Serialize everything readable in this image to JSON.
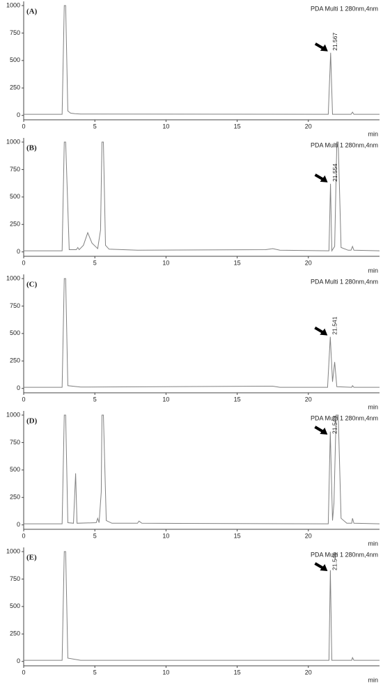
{
  "chart_data": [
    {
      "type": "line",
      "title": "(A)",
      "subtitle": "PDA Multi 1 280nm,4nm",
      "x_label": "min",
      "xlim": [
        0,
        25
      ],
      "xticks": [
        0,
        5,
        10,
        15,
        20
      ],
      "ylim": [
        -40,
        1000
      ],
      "yticks": [
        0,
        250,
        500,
        750,
        1000
      ],
      "series": [
        {
          "color": "#808080",
          "x": [
            0,
            2.7,
            2.85,
            2.95,
            3.1,
            3.3,
            3.6,
            4,
            21.4,
            21.567,
            21.7,
            23.0,
            23.1,
            23.2,
            25
          ],
          "values": [
            10,
            10,
            1000,
            1000,
            40,
            20,
            15,
            12,
            10,
            570,
            10,
            10,
            30,
            10,
            10
          ]
        }
      ],
      "annotations": [
        {
          "text": "21.567",
          "x": 21.567
        }
      ]
    },
    {
      "type": "line",
      "title": "(B)",
      "subtitle": "PDA Multi 1 280nm,4nm",
      "x_label": "min",
      "xlim": [
        0,
        25
      ],
      "xticks": [
        0,
        5,
        10,
        15,
        20
      ],
      "ylim": [
        -40,
        1000
      ],
      "yticks": [
        0,
        250,
        500,
        750,
        1000
      ],
      "series": [
        {
          "color": "#808080",
          "x": [
            0,
            2.7,
            2.85,
            2.95,
            3.2,
            3.7,
            3.8,
            3.9,
            4.2,
            4.5,
            4.8,
            5.2,
            5.4,
            5.5,
            5.6,
            5.75,
            6,
            8,
            17,
            17.5,
            18,
            21.45,
            21.554,
            21.65,
            21.85,
            22.0,
            22.1,
            22.3,
            22.8,
            23.0,
            23.1,
            23.2,
            25
          ],
          "values": [
            10,
            10,
            1000,
            1000,
            20,
            20,
            40,
            20,
            60,
            175,
            80,
            30,
            200,
            1000,
            1000,
            60,
            25,
            15,
            20,
            30,
            15,
            10,
            620,
            10,
            50,
            1000,
            1000,
            40,
            15,
            15,
            50,
            15,
            10
          ]
        }
      ],
      "annotations": [
        {
          "text": "21.554",
          "x": 21.554
        }
      ]
    },
    {
      "type": "line",
      "title": "(C)",
      "subtitle": "PDA Multi 1 280nm,4nm",
      "x_label": "min",
      "xlim": [
        0,
        25
      ],
      "xticks": [
        0,
        5,
        10,
        15,
        20
      ],
      "ylim": [
        -40,
        1000
      ],
      "yticks": [
        0,
        250,
        500,
        750,
        1000
      ],
      "series": [
        {
          "color": "#808080",
          "x": [
            0,
            2.7,
            2.85,
            2.95,
            3.1,
            4,
            17.5,
            18,
            21.35,
            21.541,
            21.7,
            21.85,
            22,
            23.05,
            23.1,
            23.2,
            25
          ],
          "values": [
            10,
            10,
            1000,
            1000,
            25,
            12,
            20,
            10,
            10,
            470,
            60,
            240,
            15,
            10,
            25,
            10,
            10
          ]
        }
      ],
      "annotations": [
        {
          "text": "21.541",
          "x": 21.541
        }
      ]
    },
    {
      "type": "line",
      "title": "(D)",
      "subtitle": "PDA Multi 1 280nm,4nm",
      "x_label": "min",
      "xlim": [
        0,
        25
      ],
      "xticks": [
        0,
        5,
        10,
        15,
        20
      ],
      "ylim": [
        -40,
        1000
      ],
      "yticks": [
        0,
        250,
        500,
        750,
        1000
      ],
      "series": [
        {
          "color": "#808080",
          "x": [
            0,
            2.7,
            2.85,
            2.95,
            3.1,
            3.5,
            3.65,
            3.75,
            5.1,
            5.2,
            5.3,
            5.45,
            5.5,
            5.6,
            5.8,
            6.2,
            8,
            8.1,
            8.3,
            21.4,
            21.543,
            21.7,
            21.8,
            21.95,
            22.1,
            22.3,
            22.7,
            23.05,
            23.1,
            23.2,
            25
          ],
          "values": [
            10,
            10,
            1000,
            1000,
            20,
            15,
            470,
            15,
            20,
            60,
            20,
            300,
            1000,
            1000,
            40,
            15,
            15,
            35,
            15,
            10,
            850,
            40,
            200,
            1000,
            1000,
            60,
            15,
            15,
            60,
            15,
            10
          ]
        }
      ],
      "annotations": [
        {
          "text": "21.543",
          "x": 21.543
        }
      ]
    },
    {
      "type": "line",
      "title": "(E)",
      "subtitle": "PDA Multi 1 280nm,4nm",
      "x_label": "min",
      "xlim": [
        0,
        25
      ],
      "xticks": [
        0,
        5,
        10,
        15,
        20
      ],
      "ylim": [
        -40,
        1000
      ],
      "yticks": [
        0,
        250,
        500,
        750,
        1000
      ],
      "series": [
        {
          "color": "#808080",
          "x": [
            0,
            2.7,
            2.85,
            2.95,
            3.1,
            4,
            21.45,
            21.546,
            21.65,
            23.05,
            23.1,
            23.2,
            25
          ],
          "values": [
            10,
            10,
            1000,
            1000,
            30,
            10,
            10,
            830,
            10,
            10,
            35,
            10,
            10
          ]
        }
      ],
      "annotations": [
        {
          "text": "21.546",
          "x": 21.546
        }
      ]
    }
  ]
}
